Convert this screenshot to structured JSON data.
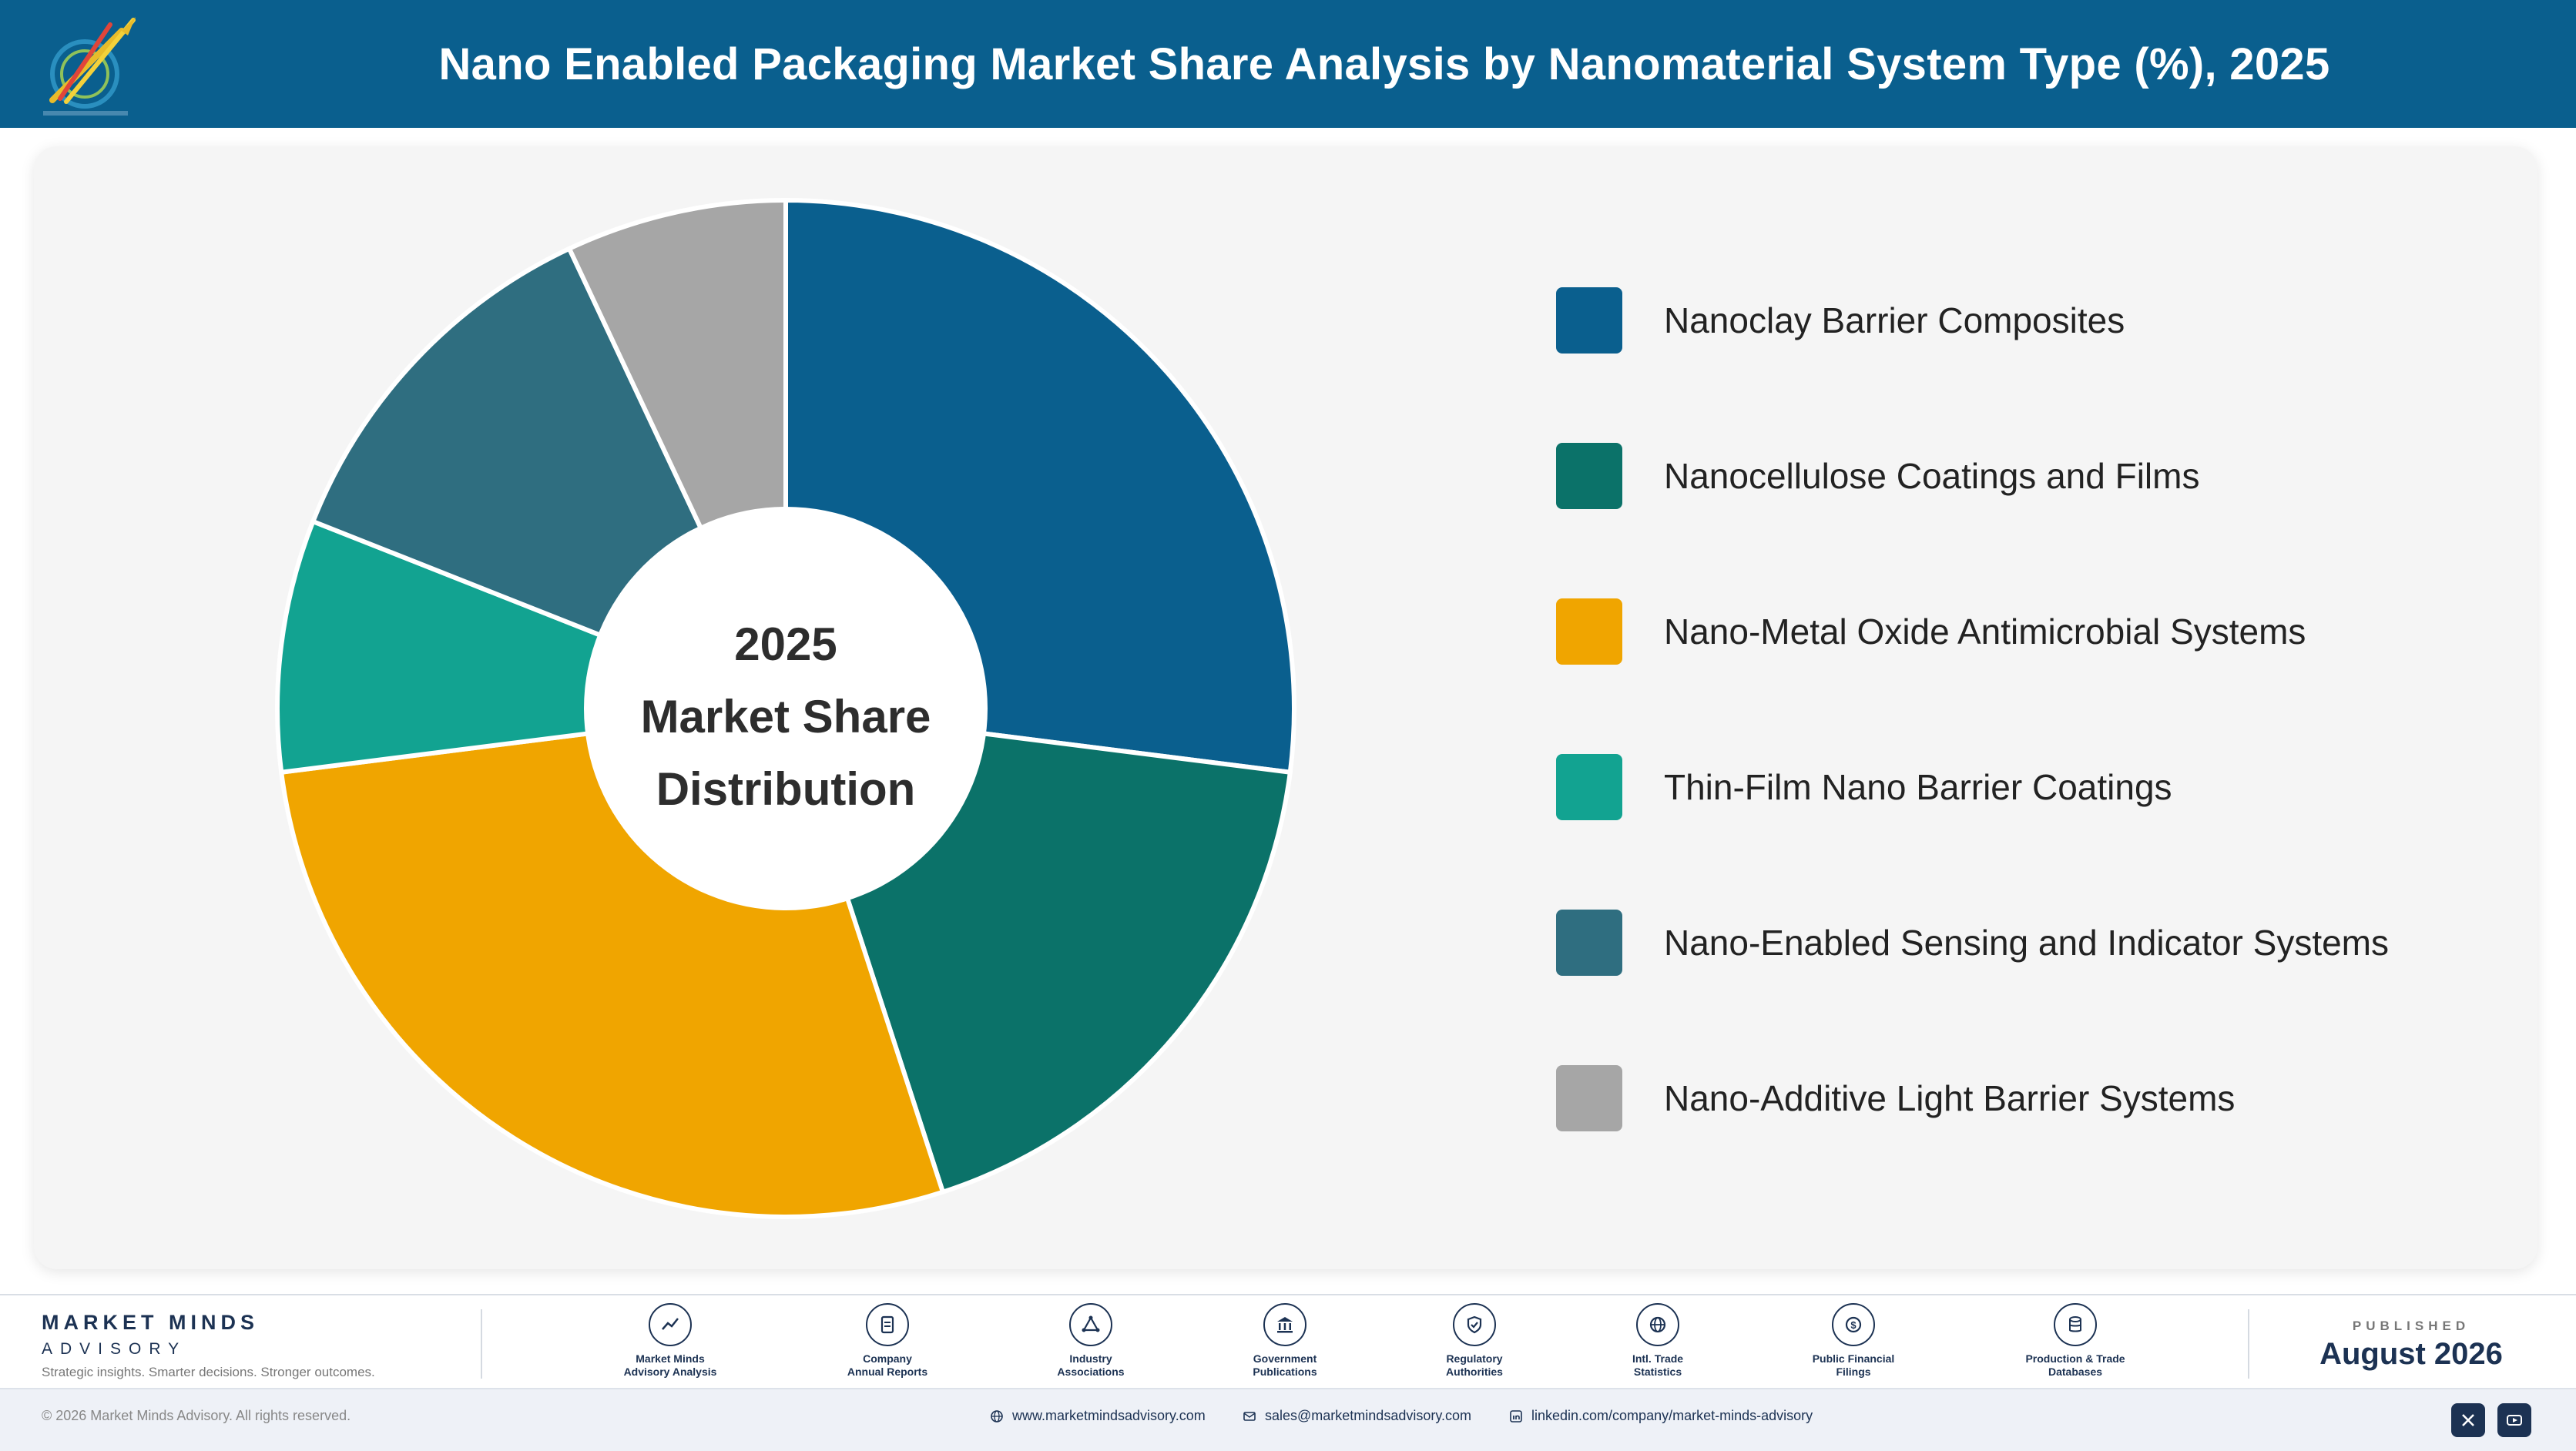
{
  "header": {
    "title": "Nano Enabled Packaging Market Share Analysis by Nanomaterial System Type (%), 2025"
  },
  "chart_data": {
    "type": "pie",
    "title": "Nano Enabled Packaging Market Share Analysis by Nanomaterial System Type (%), 2025",
    "center_label": [
      "2025",
      "Market Share",
      "Distribution"
    ],
    "series": [
      {
        "name": "Nanoclay Barrier Composites",
        "value": 27,
        "color": "#0a5f8e"
      },
      {
        "name": "Nanocellulose Coatings and Films",
        "value": 18,
        "color": "#0b7269"
      },
      {
        "name": "Nano-Metal Oxide Antimicrobial Systems",
        "value": 28,
        "color": "#f0a500"
      },
      {
        "name": "Thin-Film Nano Barrier Coatings",
        "value": 8,
        "color": "#12a391"
      },
      {
        "name": "Nano-Enabled Sensing and Indicator Systems",
        "value": 12,
        "color": "#2f6e80"
      },
      {
        "name": "Nano-Additive Light Barrier Systems",
        "value": 7,
        "color": "#a6a6a6"
      }
    ],
    "legend_position": "right",
    "data_labels": false
  },
  "footer": {
    "brand_name": "MARKET MINDS",
    "brand_sub": "ADVISORY",
    "brand_tagline": "Strategic insights. Smarter decisions. Stronger outcomes.",
    "sources": [
      {
        "line1": "Market Minds",
        "line2": "Advisory Analysis",
        "icon": "trend-chart-icon"
      },
      {
        "line1": "Company",
        "line2": "Annual Reports",
        "icon": "document-icon"
      },
      {
        "line1": "Industry",
        "line2": "Associations",
        "icon": "network-icon"
      },
      {
        "line1": "Government",
        "line2": "Publications",
        "icon": "government-building-icon"
      },
      {
        "line1": "Regulatory",
        "line2": "Authorities",
        "icon": "shield-check-icon"
      },
      {
        "line1": "Intl. Trade",
        "line2": "Statistics",
        "icon": "globe-icon"
      },
      {
        "line1": "Public Financial",
        "line2": "Filings",
        "icon": "currency-icon"
      },
      {
        "line1": "Production & Trade",
        "line2": "Databases",
        "icon": "database-icon"
      }
    ],
    "published_label": "PUBLISHED",
    "published_date": "August 2026"
  },
  "bottom_bar": {
    "copyright": "© 2026 Market Minds Advisory. All rights reserved.",
    "website": "www.marketmindsadvisory.com",
    "email": "sales@marketmindsadvisory.com",
    "linkedin": "linkedin.com/company/market-minds-advisory"
  }
}
